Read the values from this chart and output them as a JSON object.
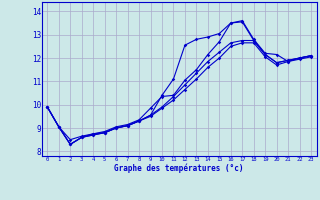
{
  "xlabel": "Graphe des températures (°c)",
  "bg_color": "#cce8e8",
  "grid_color": "#aaaacc",
  "line_color": "#0000cc",
  "xlim": [
    -0.5,
    23.5
  ],
  "ylim": [
    7.8,
    14.4
  ],
  "xticks": [
    0,
    1,
    2,
    3,
    4,
    5,
    6,
    7,
    8,
    9,
    10,
    11,
    12,
    13,
    14,
    15,
    16,
    17,
    18,
    19,
    20,
    21,
    22,
    23
  ],
  "yticks": [
    8,
    9,
    10,
    11,
    12,
    13,
    14
  ],
  "line1_x": [
    0,
    1,
    2,
    3,
    4,
    5,
    6,
    7,
    8,
    9,
    10,
    11,
    12,
    13,
    14,
    15,
    16,
    17,
    18,
    19,
    20,
    21,
    22,
    23
  ],
  "line1_y": [
    9.9,
    9.05,
    8.3,
    8.6,
    8.75,
    8.8,
    9.0,
    9.1,
    9.3,
    9.55,
    10.4,
    11.1,
    12.55,
    12.8,
    12.9,
    13.05,
    13.5,
    13.55,
    12.75,
    12.15,
    11.8,
    11.9,
    12.0,
    12.1
  ],
  "line2_x": [
    0,
    1,
    2,
    3,
    4,
    5,
    6,
    7,
    8,
    9,
    10,
    11,
    12,
    13,
    14,
    15,
    16,
    17,
    18,
    19,
    20,
    21,
    22,
    23
  ],
  "line2_y": [
    9.9,
    9.05,
    8.5,
    8.65,
    8.75,
    8.85,
    9.05,
    9.15,
    9.35,
    9.85,
    10.35,
    10.4,
    11.05,
    11.5,
    12.15,
    12.7,
    13.5,
    13.6,
    12.8,
    12.2,
    12.15,
    11.85,
    12.0,
    12.1
  ],
  "line3_x": [
    0,
    1,
    2,
    3,
    4,
    5,
    6,
    7,
    8,
    9,
    10,
    11,
    12,
    13,
    14,
    15,
    16,
    17,
    18,
    19,
    20,
    21,
    22,
    23
  ],
  "line3_y": [
    9.9,
    9.05,
    8.3,
    8.6,
    8.7,
    8.8,
    9.0,
    9.1,
    9.3,
    9.55,
    9.9,
    10.35,
    10.85,
    11.35,
    11.85,
    12.25,
    12.65,
    12.75,
    12.75,
    12.15,
    11.8,
    11.9,
    12.0,
    12.1
  ],
  "line4_x": [
    0,
    1,
    2,
    3,
    4,
    5,
    6,
    7,
    8,
    9,
    10,
    11,
    12,
    13,
    14,
    15,
    16,
    17,
    18,
    19,
    20,
    21,
    22,
    23
  ],
  "line4_y": [
    9.9,
    9.05,
    8.3,
    8.6,
    8.7,
    8.8,
    9.0,
    9.1,
    9.3,
    9.5,
    9.85,
    10.2,
    10.65,
    11.1,
    11.6,
    12.0,
    12.5,
    12.65,
    12.65,
    12.05,
    11.7,
    11.85,
    11.95,
    12.05
  ]
}
